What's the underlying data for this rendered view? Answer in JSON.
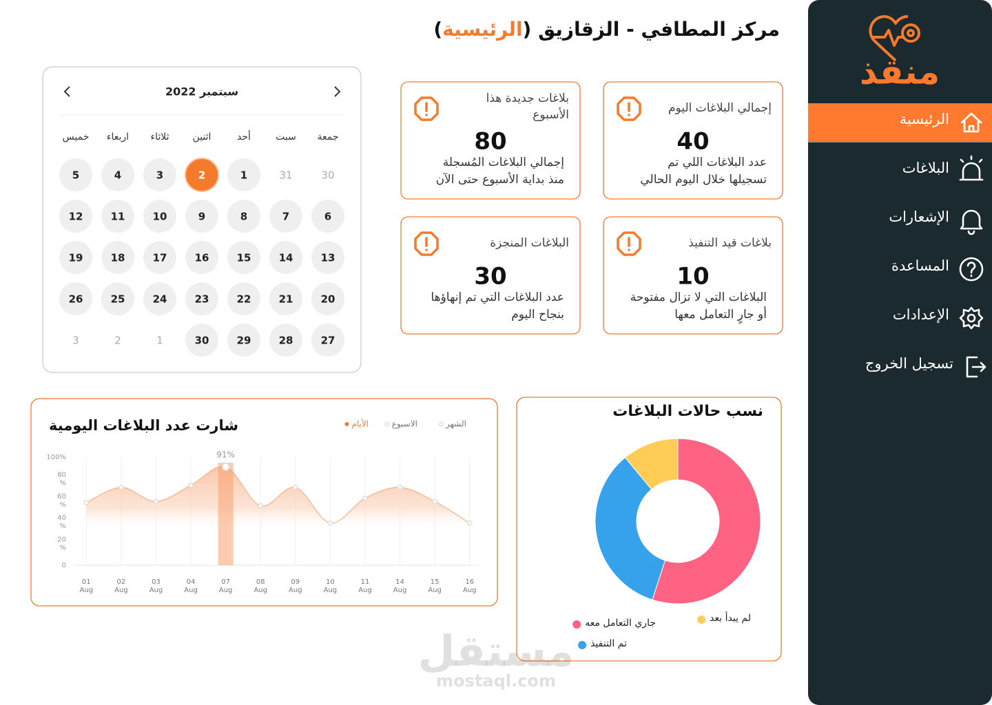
{
  "sidebar": {
    "logo": "منقذ",
    "nav": [
      "الرئيسية",
      "البلاغات",
      "الإشعارات",
      "المساعدة",
      "الإعدادات",
      "تسجيل الخروج"
    ],
    "active": 0
  },
  "header": {
    "title": "مركز المطافي - الزقازيق (",
    "highlight": "الرئيسية",
    "title_end": ")"
  },
  "stats": [
    {
      "title": [
        "إجمالي البلاغات اليوم"
      ],
      "value": 40,
      "description": [
        "عدد البلاغات اللي تم",
        "تسجيلها خلال اليوم الحالي"
      ]
    },
    {
      "title": [
        "بلاغات جديدة هذا",
        "الأسبوع"
      ],
      "value": 80,
      "description": [
        "إجمالي البلاغات المُسجلة",
        "منذ بداية الأسبوع حتى الآن"
      ]
    },
    {
      "title": [
        "بلاغات قيد التنفيذ"
      ],
      "value": 10,
      "description": [
        "البلاغات التي لا تزال مفتوحة",
        "أو جارٍ التعامل معها"
      ]
    },
    {
      "title": [
        "البلاغات المنجزة"
      ],
      "value": 30,
      "description": [
        "عدد البلاغات التي تم إنهاؤها",
        "بنجاح اليوم"
      ]
    }
  ],
  "calendar": {
    "month": "سبتمبر 2022",
    "weekdays": [
      "جمعة",
      "سبت",
      "أحد",
      "اثنين",
      "ثلاثاء",
      "اربعاء",
      "خميس"
    ],
    "selected": 2,
    "weeks": [
      [
        {
          "day": 30,
          "outside": true
        },
        {
          "day": 31,
          "outside": true
        },
        {
          "day": 1,
          "outside": false
        },
        {
          "day": 2,
          "outside": false
        },
        {
          "day": 3,
          "outside": false
        },
        {
          "day": 4,
          "outside": false
        },
        {
          "day": 5,
          "outside": false
        }
      ],
      [
        {
          "day": 6,
          "outside": false
        },
        {
          "day": 7,
          "outside": false
        },
        {
          "day": 8,
          "outside": false
        },
        {
          "day": 9,
          "outside": false
        },
        {
          "day": 10,
          "outside": false
        },
        {
          "day": 11,
          "outside": false
        },
        {
          "day": 12,
          "outside": false
        }
      ],
      [
        {
          "day": 13,
          "outside": false
        },
        {
          "day": 14,
          "outside": false
        },
        {
          "day": 15,
          "outside": false
        },
        {
          "day": 16,
          "outside": false
        },
        {
          "day": 17,
          "outside": false
        },
        {
          "day": 18,
          "outside": false
        },
        {
          "day": 19,
          "outside": false
        }
      ],
      [
        {
          "day": 20,
          "outside": false
        },
        {
          "day": 21,
          "outside": false
        },
        {
          "day": 22,
          "outside": false
        },
        {
          "day": 23,
          "outside": false
        },
        {
          "day": 24,
          "outside": false
        },
        {
          "day": 25,
          "outside": false
        },
        {
          "day": 26,
          "outside": false
        }
      ],
      [
        {
          "day": 27,
          "outside": false
        },
        {
          "day": 28,
          "outside": false
        },
        {
          "day": 29,
          "outside": false
        },
        {
          "day": 30,
          "outside": false
        },
        {
          "day": 1,
          "outside": true
        },
        {
          "day": 2,
          "outside": true
        },
        {
          "day": 3,
          "outside": true
        }
      ]
    ]
  },
  "chart_data": [
    {
      "type": "line",
      "title": "شارت عدد البلاغات اليومية",
      "legend": [
        "الأيام",
        "الاسبوع",
        "الشهر"
      ],
      "active_legend": 0,
      "categories": [
        "01 Aug",
        "02 Aug",
        "03 Aug",
        "04 Aug",
        "07 Aug",
        "08 Aug",
        "09 Aug",
        "10 Aug",
        "11 Aug",
        "14 Aug",
        "15 Aug",
        "16 Aug"
      ],
      "values": [
        58,
        72,
        59,
        74,
        91,
        55,
        72,
        39,
        62,
        72,
        59,
        39
      ],
      "value_labels": [
        null,
        null,
        null,
        null,
        "91%",
        null,
        null,
        null,
        null,
        null,
        null,
        null
      ],
      "color": "#f7a577",
      "ylim": [
        0,
        100
      ],
      "yticks": [
        0,
        {
          "value": 20,
          "label": "20 %"
        },
        {
          "value": 40,
          "label": "40 %"
        },
        {
          "value": 60,
          "label": "60 %"
        },
        {
          "value": 80,
          "label": "80 %"
        },
        {
          "value": 100,
          "label": "100%"
        }
      ]
    },
    {
      "type": "pie",
      "title": "نسب حالات البلاغات",
      "categories": [
        "جاري التعامل معه",
        "تم التنفيذ",
        "لم يبدأ بعد"
      ],
      "values": [
        55,
        34,
        11
      ],
      "colors": [
        "#ff6384",
        "#36a2eb",
        "#ffcd56"
      ],
      "donut": true
    }
  ],
  "watermark": {
    "name": "مستقل",
    "url": "mostaql.com"
  }
}
